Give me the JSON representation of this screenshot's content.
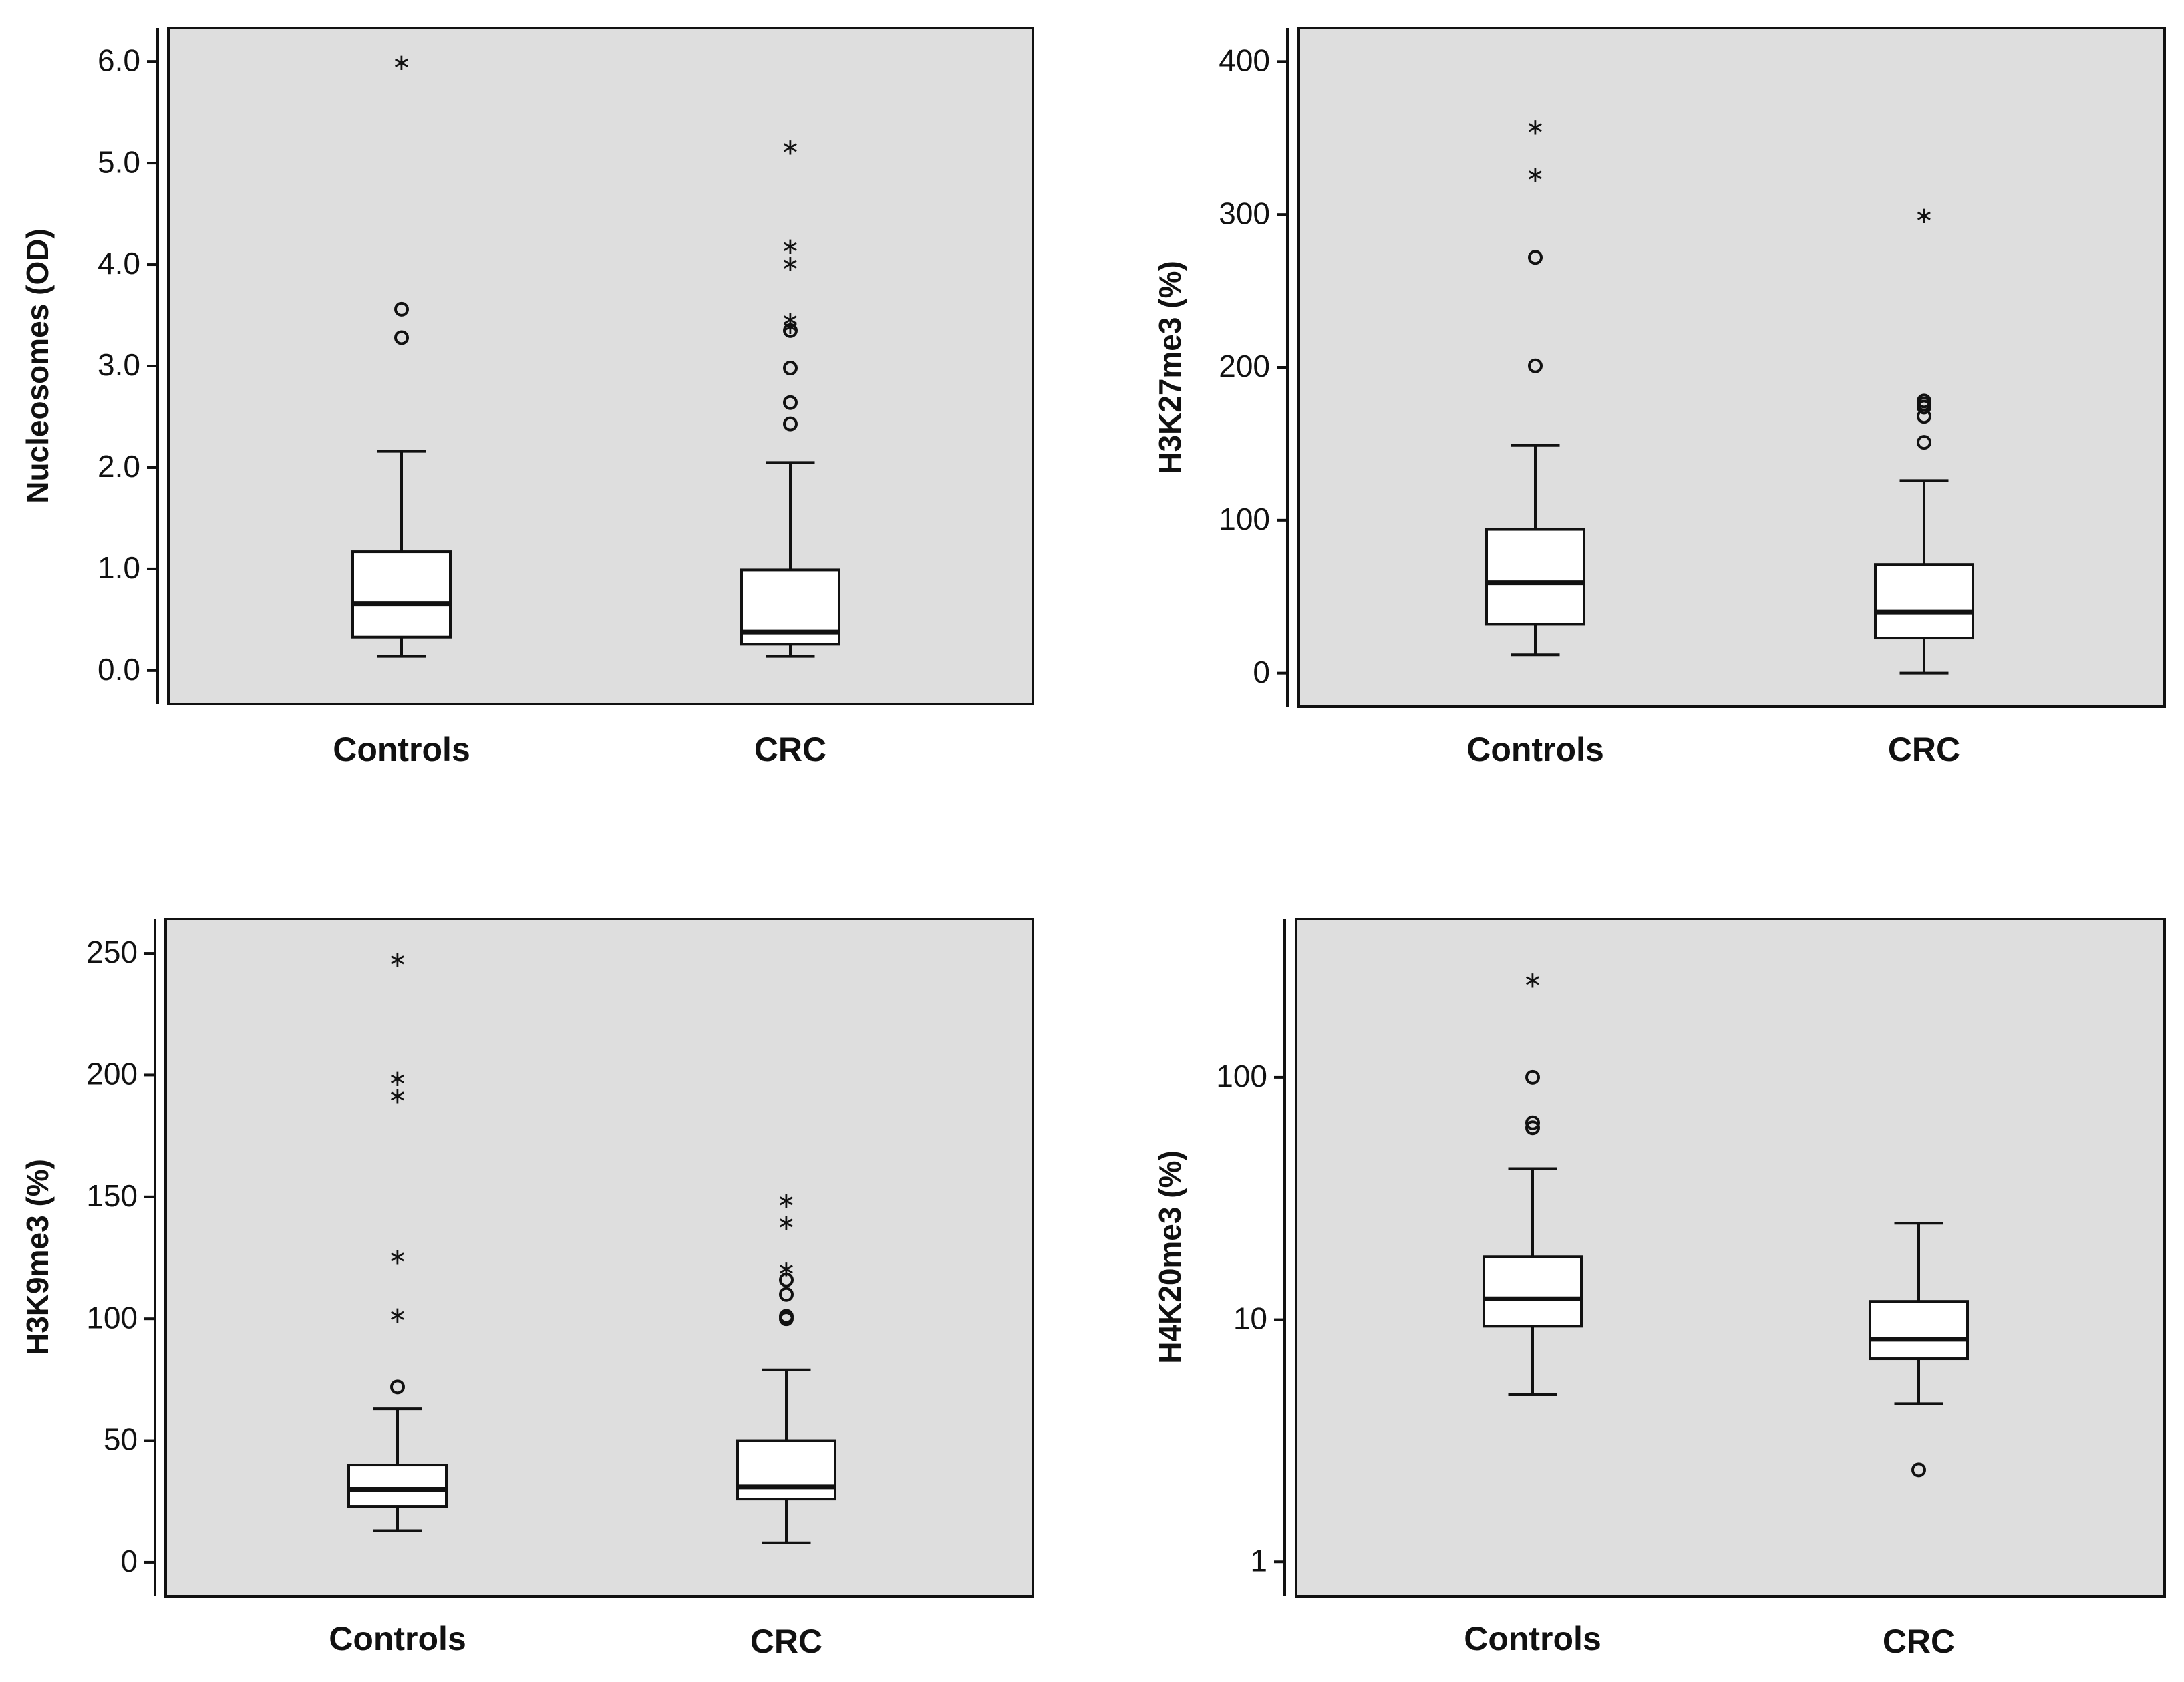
{
  "figure": {
    "background_color": "#ffffff",
    "plot_background_color": "#dedede",
    "line_color": "#111111"
  },
  "chart_data": [
    {
      "type": "boxplot",
      "ylabel": "Nucleosomes (OD)",
      "scale": "linear",
      "ylim": [
        -0.33,
        6.33
      ],
      "yticks": [
        0,
        1,
        2,
        3,
        4,
        5,
        6
      ],
      "ytick_labels": [
        "0.0",
        "1.0",
        "2.0",
        "3.0",
        "4.0",
        "5.0",
        "6.0"
      ],
      "categories": [
        "Controls",
        "CRC"
      ],
      "boxes": [
        {
          "name": "Controls",
          "min": 0.14,
          "q1": 0.33,
          "median": 0.66,
          "q3": 1.17,
          "max": 2.16,
          "outliers": [
            3.28,
            3.56
          ],
          "extremes": [
            6.0
          ]
        },
        {
          "name": "CRC",
          "min": 0.14,
          "q1": 0.26,
          "median": 0.38,
          "q3": 0.99,
          "max": 2.05,
          "outliers": [
            2.43,
            2.64,
            2.98,
            3.35
          ],
          "extremes": [
            3.4,
            3.47,
            4.02,
            4.19,
            5.17
          ]
        }
      ]
    },
    {
      "type": "boxplot",
      "ylabel": "H3K27me3 (%)",
      "scale": "linear",
      "ylim": [
        -22,
        422
      ],
      "yticks": [
        0,
        100,
        200,
        300,
        400
      ],
      "ytick_labels": [
        "0",
        "100",
        "200",
        "300",
        "400"
      ],
      "categories": [
        "Controls",
        "CRC"
      ],
      "boxes": [
        {
          "name": "Controls",
          "min": 12,
          "q1": 32,
          "median": 59,
          "q3": 94,
          "max": 149,
          "outliers": [
            201,
            272
          ],
          "extremes": [
            327,
            358
          ]
        },
        {
          "name": "CRC",
          "min": 0,
          "q1": 23,
          "median": 40,
          "q3": 71,
          "max": 126,
          "outliers": [
            151,
            168,
            174,
            176,
            178
          ],
          "extremes": [
            300
          ]
        }
      ]
    },
    {
      "type": "boxplot",
      "ylabel": "H3K9me3 (%)",
      "scale": "linear",
      "ylim": [
        -14,
        264
      ],
      "yticks": [
        0,
        50,
        100,
        150,
        200,
        250
      ],
      "ytick_labels": [
        "0",
        "50",
        "100",
        "150",
        "200",
        "250"
      ],
      "categories": [
        "Controls",
        "CRC"
      ],
      "boxes": [
        {
          "name": "Controls",
          "min": 13,
          "q1": 23,
          "median": 30,
          "q3": 40,
          "max": 63,
          "outliers": [
            72
          ],
          "extremes": [
            102,
            126,
            192,
            199,
            248
          ]
        },
        {
          "name": "CRC",
          "min": 8,
          "q1": 26,
          "median": 31,
          "q3": 50,
          "max": 79,
          "outliers": [
            100,
            101,
            110,
            116
          ],
          "extremes": [
            121,
            140,
            149
          ]
        }
      ]
    },
    {
      "type": "boxplot",
      "ylabel": "H4K20me3 (%)",
      "scale": "log",
      "ylim": [
        0.72,
        450
      ],
      "yticks": [
        1,
        10,
        100
      ],
      "ytick_labels": [
        "1",
        "10",
        "100"
      ],
      "categories": [
        "Controls",
        "CRC"
      ],
      "boxes": [
        {
          "name": "Controls",
          "min": 4.9,
          "q1": 9.4,
          "median": 12.2,
          "q3": 18.2,
          "max": 42,
          "outliers": [
            62,
            65,
            100
          ],
          "extremes": [
            255
          ]
        },
        {
          "name": "CRC",
          "min": 4.5,
          "q1": 6.9,
          "median": 8.3,
          "q3": 11.9,
          "max": 25,
          "outliers": [
            2.4
          ],
          "extremes": []
        }
      ]
    }
  ]
}
